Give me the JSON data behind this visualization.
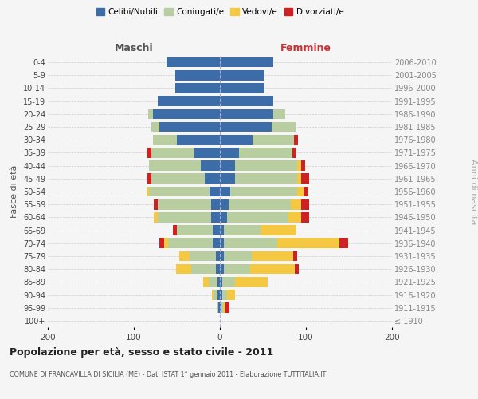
{
  "age_groups": [
    "100+",
    "95-99",
    "90-94",
    "85-89",
    "80-84",
    "75-79",
    "70-74",
    "65-69",
    "60-64",
    "55-59",
    "50-54",
    "45-49",
    "40-44",
    "35-39",
    "30-34",
    "25-29",
    "20-24",
    "15-19",
    "10-14",
    "5-9",
    "0-4"
  ],
  "birth_years": [
    "≤ 1910",
    "1911-1915",
    "1916-1920",
    "1921-1925",
    "1926-1930",
    "1931-1935",
    "1936-1940",
    "1941-1945",
    "1946-1950",
    "1951-1955",
    "1956-1960",
    "1961-1965",
    "1966-1970",
    "1971-1975",
    "1976-1980",
    "1981-1985",
    "1986-1990",
    "1991-1995",
    "1996-2000",
    "2001-2005",
    "2006-2010"
  ],
  "male": {
    "celibi": [
      0,
      2,
      3,
      3,
      5,
      5,
      8,
      8,
      10,
      10,
      12,
      18,
      22,
      30,
      50,
      70,
      78,
      72,
      52,
      52,
      62
    ],
    "coniugati": [
      0,
      2,
      4,
      10,
      28,
      30,
      52,
      42,
      62,
      62,
      70,
      62,
      60,
      50,
      28,
      10,
      5,
      0,
      0,
      0,
      0
    ],
    "vedovi": [
      0,
      0,
      2,
      6,
      18,
      12,
      5,
      0,
      5,
      0,
      3,
      0,
      0,
      0,
      0,
      0,
      0,
      0,
      0,
      0,
      0
    ],
    "divorziati": [
      0,
      0,
      0,
      0,
      0,
      0,
      5,
      5,
      0,
      5,
      0,
      5,
      0,
      5,
      0,
      0,
      0,
      0,
      0,
      0,
      0
    ]
  },
  "female": {
    "nubili": [
      0,
      2,
      3,
      3,
      5,
      5,
      5,
      5,
      8,
      10,
      12,
      18,
      18,
      22,
      38,
      60,
      62,
      62,
      52,
      52,
      62
    ],
    "coniugate": [
      0,
      2,
      5,
      15,
      30,
      32,
      62,
      42,
      72,
      72,
      78,
      72,
      72,
      62,
      48,
      28,
      14,
      0,
      0,
      0,
      0
    ],
    "vedove": [
      0,
      2,
      10,
      38,
      52,
      48,
      72,
      42,
      14,
      12,
      8,
      4,
      4,
      0,
      0,
      0,
      0,
      0,
      0,
      0,
      0
    ],
    "divorziate": [
      0,
      5,
      0,
      0,
      5,
      5,
      10,
      0,
      10,
      10,
      5,
      10,
      5,
      5,
      5,
      0,
      0,
      0,
      0,
      0,
      0
    ]
  },
  "colors": {
    "celibi": "#3c6da8",
    "coniugati": "#b8cda0",
    "vedovi": "#f5c842",
    "divorziati": "#cc2222"
  },
  "title": "Popolazione per età, sesso e stato civile - 2011",
  "subtitle": "COMUNE DI FRANCAVILLA DI SICILIA (ME) - Dati ISTAT 1° gennaio 2011 - Elaborazione TUTTITALIA.IT",
  "xlabel_left": "Maschi",
  "xlabel_right": "Femmine",
  "ylabel_left": "Fasce di età",
  "ylabel_right": "Anni di nascita",
  "legend_labels": [
    "Celibi/Nubili",
    "Coniugati/e",
    "Vedovi/e",
    "Divorziati/e"
  ],
  "xlim": 200,
  "background_color": "#f5f5f5"
}
